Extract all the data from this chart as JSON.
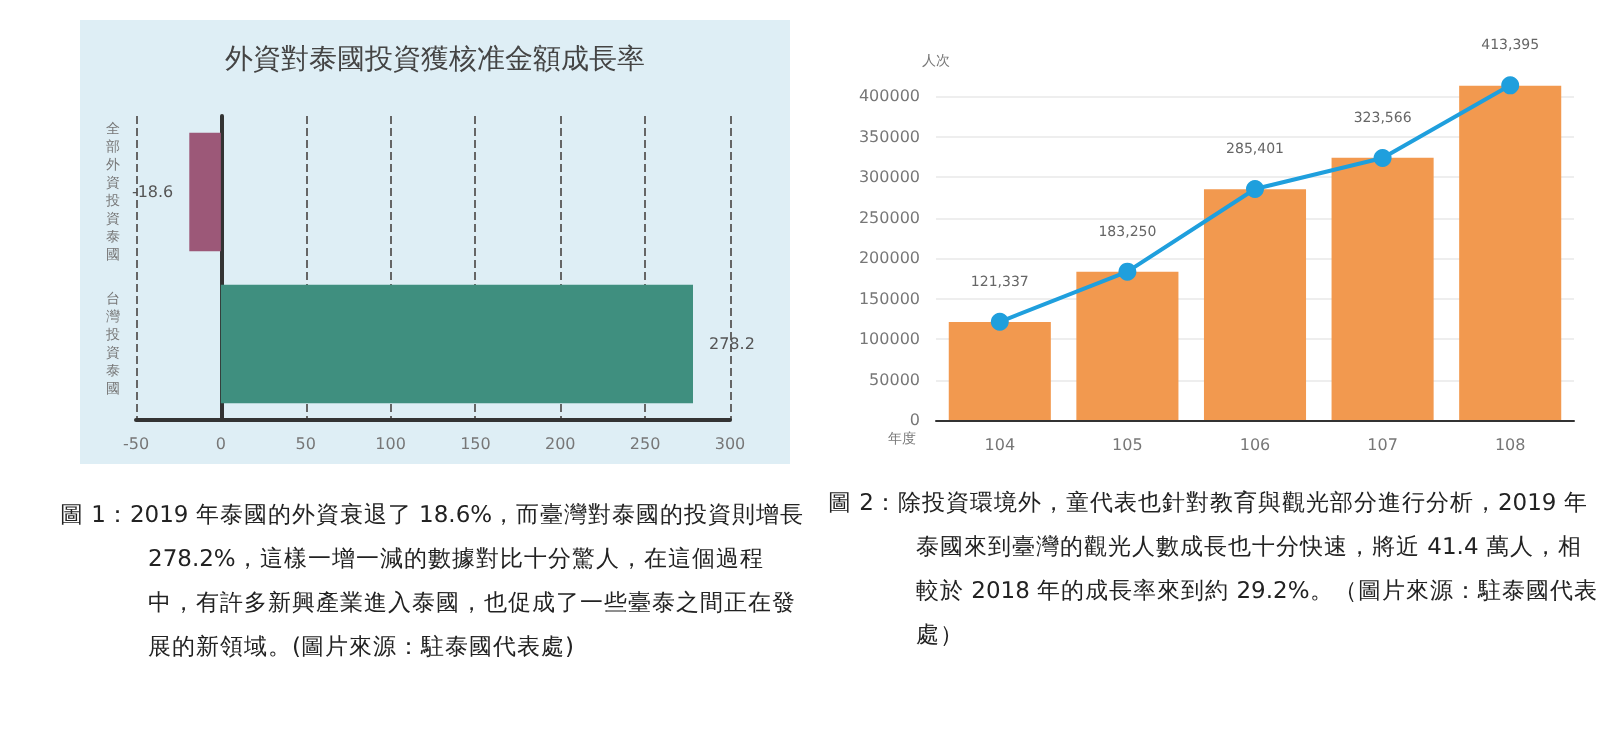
{
  "chart_data": [
    {
      "type": "bar",
      "orientation": "horizontal",
      "title": "外資對泰國投資獲核准金額成長率",
      "categories": [
        "全部外資投資泰國",
        "台灣投資泰國"
      ],
      "values": [
        -18.6,
        278.2
      ],
      "colors": [
        "#9c5878",
        "#3f8f7f"
      ],
      "data_labels": true,
      "xlim": [
        -50,
        300
      ],
      "xticks": [
        -50,
        0,
        50,
        100,
        150,
        200,
        250,
        300
      ],
      "grid": "x",
      "annotations": [
        "圖 1：2019 年泰國的外資衰退了 18.6%，而臺灣對泰國的投資則增長 278.2%，這樣一增一減的數據對比十分驚人，在這個過程中，有許多新興產業進入泰國，也促成了一些臺泰之間正在發展的新領域。(圖片來源：駐泰國代表處)"
      ]
    },
    {
      "type": "bar",
      "xlabel": "年度",
      "ylabel": "人次",
      "categories": [
        "104",
        "105",
        "106",
        "107",
        "108"
      ],
      "series": [
        {
          "color": "#f2994f",
          "values": [
            121000,
            183000,
            285000,
            324000,
            413000
          ]
        },
        {
          "type": "line",
          "color": "#1f9fdd",
          "values": [
            121337,
            183250,
            285401,
            323566,
            413395
          ],
          "value_labels": [
            "121,337",
            "183,250",
            "285,401",
            "323,566",
            "413,395"
          ]
        }
      ],
      "marker": "circle",
      "ylim": [
        0,
        420000
      ],
      "yticks": [
        0,
        50000,
        100000,
        150000,
        200000,
        250000,
        300000,
        350000,
        400000
      ],
      "grid": "y",
      "annotations": [
        "圖 2：除投資環境外，童代表也針對教育與觀光部分進行分析，2019 年泰國來到臺灣的觀光人數成長也十分快速，將近 41.4 萬人，相較於 2018 年的成長率來到約 29.2%。（圖片來源：駐泰國代表處）"
      ]
    }
  ]
}
